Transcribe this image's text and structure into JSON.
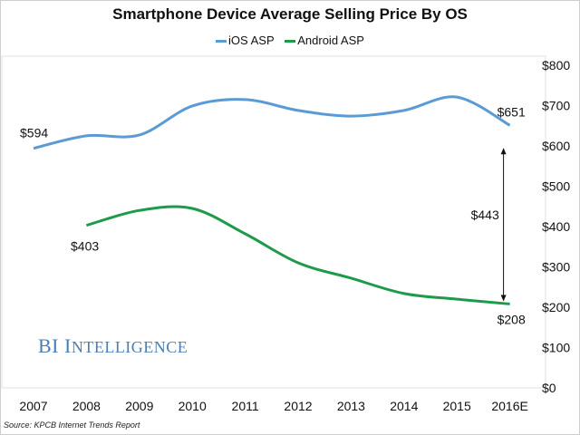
{
  "chart_data": {
    "type": "line",
    "title": "Smartphone Device Average Selling Price By OS",
    "categories": [
      "2007",
      "2008",
      "2009",
      "2010",
      "2011",
      "2012",
      "2013",
      "2014",
      "2015",
      "2016E"
    ],
    "series": [
      {
        "name": "iOS ASP",
        "color": "#5b9bd5",
        "values": [
          594,
          625,
          627,
          699,
          715,
          688,
          674,
          688,
          721,
          651
        ]
      },
      {
        "name": "Android ASP",
        "color": "#1e9a4b",
        "values": [
          null,
          403,
          440,
          445,
          382,
          310,
          272,
          234,
          220,
          208
        ]
      }
    ],
    "ylim": [
      0,
      800
    ],
    "yticks": [
      "$0",
      "$100",
      "$200",
      "$300",
      "$400",
      "$500",
      "$600",
      "$700",
      "$800"
    ],
    "y_axis_position": "right",
    "grid": false,
    "legend": "top",
    "annotations": {
      "ios_start": "$594",
      "ios_end": "$651",
      "android_start": "$403",
      "android_end": "$208",
      "gap": "$443"
    }
  },
  "brand": {
    "main": "BI",
    "rest": "Intelligence"
  },
  "source": "Source: KPCB Internet Trends Report"
}
